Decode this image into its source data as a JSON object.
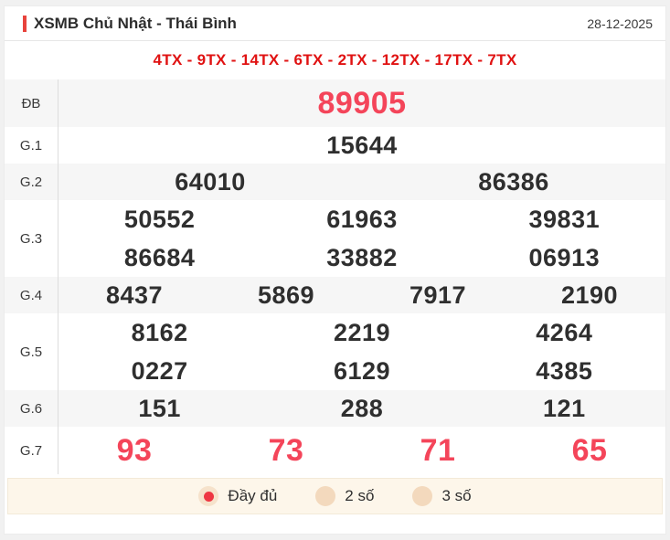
{
  "header": {
    "title": "XSMB Chủ Nhật - Thái Bình",
    "date": "28-12-2025"
  },
  "tx_line": "4TX - 9TX - 14TX - 6TX - 2TX - 12TX - 17TX - 7TX",
  "prize_table": {
    "rows": [
      {
        "label": "ĐB",
        "highlight": true,
        "lines": [
          [
            "89905"
          ]
        ]
      },
      {
        "label": "G.1",
        "highlight": false,
        "lines": [
          [
            "15644"
          ]
        ]
      },
      {
        "label": "G.2",
        "highlight": false,
        "lines": [
          [
            "64010",
            "86386"
          ]
        ]
      },
      {
        "label": "G.3",
        "highlight": false,
        "lines": [
          [
            "50552",
            "61963",
            "39831"
          ],
          [
            "86684",
            "33882",
            "06913"
          ]
        ]
      },
      {
        "label": "G.4",
        "highlight": false,
        "lines": [
          [
            "8437",
            "5869",
            "7917",
            "2190"
          ]
        ]
      },
      {
        "label": "G.5",
        "highlight": false,
        "lines": [
          [
            "8162",
            "2219",
            "4264"
          ],
          [
            "0227",
            "6129",
            "4385"
          ]
        ]
      },
      {
        "label": "G.6",
        "highlight": false,
        "lines": [
          [
            "151",
            "288",
            "121"
          ]
        ]
      },
      {
        "label": "G.7",
        "highlight": true,
        "lines": [
          [
            "93",
            "73",
            "71",
            "65"
          ]
        ]
      }
    ]
  },
  "footer": {
    "options": [
      {
        "label": "Đầy đủ",
        "selected": true
      },
      {
        "label": "2 số",
        "selected": false
      },
      {
        "label": "3 số",
        "selected": false
      }
    ]
  },
  "colors": {
    "accent_red": "#e8433c",
    "tx_red": "#e01212",
    "special_number_red": "#f4455a",
    "number_dark": "#2f2f2f",
    "row_gray": "#f6f6f6",
    "footer_bg": "#fdf6ea",
    "radio_fill": "#f3d9bd",
    "radio_dot": "#ee3642"
  }
}
